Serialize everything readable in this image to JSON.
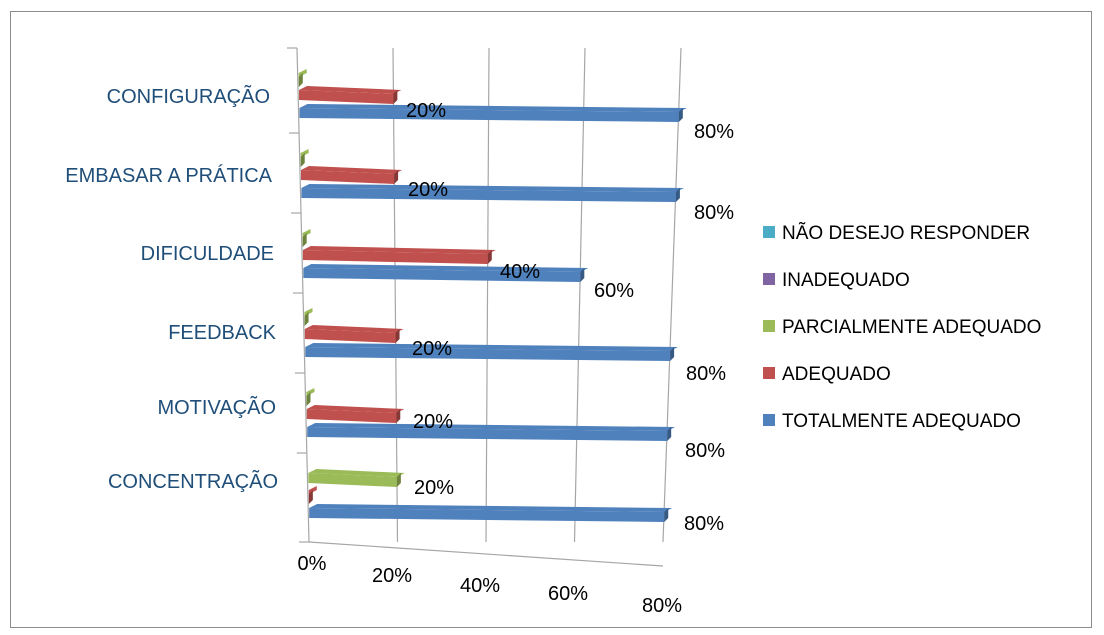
{
  "chart_data": {
    "type": "bar",
    "orientation": "horizontal",
    "style": "3d-perspective",
    "categories": [
      "CONCENTRAÇÃO",
      "MOTIVAÇÃO",
      "FEEDBACK",
      "DIFICULDADE",
      "EMBASAR A PRÁTICA",
      "CONFIGURAÇÃO"
    ],
    "series": [
      {
        "name": "TOTALMENTE ADEQUADO",
        "color": "#4f81bd",
        "values": [
          80,
          80,
          80,
          60,
          80,
          80
        ]
      },
      {
        "name": "ADEQUADO",
        "color": "#c0504d",
        "values": [
          0,
          20,
          20,
          40,
          20,
          20
        ]
      },
      {
        "name": "PARCIALMENTE ADEQUADO",
        "color": "#9bbb59",
        "values": [
          20,
          0,
          0,
          0,
          0,
          0
        ]
      },
      {
        "name": "INADEQUADO",
        "color": "#8064a2",
        "values": [
          0,
          0,
          0,
          0,
          0,
          0
        ]
      },
      {
        "name": "NÃO DESEJO RESPONDER",
        "color": "#4bacc6",
        "values": [
          0,
          0,
          0,
          0,
          0,
          0
        ]
      }
    ],
    "data_labels": [
      {
        "category": "CONFIGURAÇÃO",
        "series": "ADEQUADO",
        "text": "20%"
      },
      {
        "category": "CONFIGURAÇÃO",
        "series": "TOTALMENTE ADEQUADO",
        "text": "80%"
      },
      {
        "category": "EMBASAR A PRÁTICA",
        "series": "ADEQUADO",
        "text": "20%"
      },
      {
        "category": "EMBASAR A PRÁTICA",
        "series": "TOTALMENTE ADEQUADO",
        "text": "80%"
      },
      {
        "category": "DIFICULDADE",
        "series": "ADEQUADO",
        "text": "40%"
      },
      {
        "category": "DIFICULDADE",
        "series": "TOTALMENTE ADEQUADO",
        "text": "60%"
      },
      {
        "category": "FEEDBACK",
        "series": "ADEQUADO",
        "text": "20%"
      },
      {
        "category": "FEEDBACK",
        "series": "TOTALMENTE ADEQUADO",
        "text": "80%"
      },
      {
        "category": "MOTIVAÇÃO",
        "series": "ADEQUADO",
        "text": "20%"
      },
      {
        "category": "MOTIVAÇÃO",
        "series": "TOTALMENTE ADEQUADO",
        "text": "80%"
      },
      {
        "category": "CONCENTRAÇÃO",
        "series": "PARCIALMENTE ADEQUADO",
        "text": "20%"
      },
      {
        "category": "CONCENTRAÇÃO",
        "series": "TOTALMENTE ADEQUADO",
        "text": "80%"
      }
    ],
    "x_ticks": [
      "0%",
      "20%",
      "40%",
      "60%",
      "80%"
    ],
    "xlim": [
      0,
      80
    ],
    "title": "",
    "xlabel": "",
    "ylabel": "",
    "grid": true,
    "legend": {
      "placement": "right",
      "order": [
        "NÃO DESEJO RESPONDER",
        "INADEQUADO",
        "PARCIALMENTE ADEQUADO",
        "ADEQUADO",
        "TOTALMENTE ADEQUADO"
      ]
    }
  }
}
